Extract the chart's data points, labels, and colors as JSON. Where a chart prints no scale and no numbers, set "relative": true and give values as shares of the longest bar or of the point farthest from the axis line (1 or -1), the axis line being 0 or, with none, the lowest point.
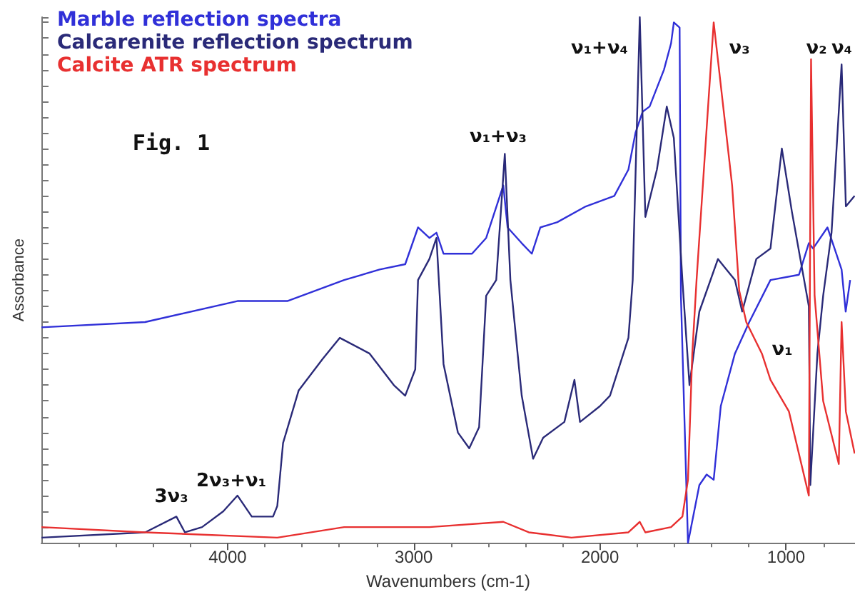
{
  "chart_data": {
    "type": "line",
    "relative": true,
    "xlabel": "Wavenumbers (cm-1)",
    "ylabel": "Assorbance",
    "xlim": [
      5000,
      630
    ],
    "xticks": [
      4000,
      3000,
      2000,
      1000
    ],
    "legend": "top left",
    "marker": "none",
    "line_style": "solid",
    "series": [
      {
        "name": "Marble reflection spectra",
        "color": "#3030d8",
        "x": [
          5000,
          4443,
          3947,
          3679,
          3374,
          3183,
          3046,
          2977,
          2916,
          2878,
          2840,
          2687,
          2611,
          2519,
          2496,
          2420,
          2366,
          2320,
          2229,
          2076,
          1923,
          1847,
          1809,
          1771,
          1733,
          1656,
          1618,
          1603,
          1572,
          1565,
          1527,
          1466,
          1427,
          1389,
          1351,
          1275,
          1198,
          1084,
          931,
          878,
          855,
          778,
          702,
          680,
          656
        ],
        "values": [
          0.41,
          0.42,
          0.46,
          0.46,
          0.5,
          0.52,
          0.53,
          0.6,
          0.58,
          0.59,
          0.55,
          0.55,
          0.58,
          0.68,
          0.6,
          0.57,
          0.55,
          0.6,
          0.61,
          0.64,
          0.66,
          0.71,
          0.78,
          0.82,
          0.83,
          0.9,
          0.95,
          0.99,
          0.98,
          0.47,
          0,
          0.11,
          0.13,
          0.12,
          0.26,
          0.36,
          0.42,
          0.5,
          0.51,
          0.57,
          0.56,
          0.6,
          0.52,
          0.44,
          0.5
        ]
      },
      {
        "name": "Calcarenite reflection spectrum",
        "color": "#2a2a78",
        "x": [
          5000,
          4443,
          4275,
          4229,
          4137,
          4023,
          3947,
          3870,
          3756,
          3733,
          3702,
          3618,
          3489,
          3397,
          3237,
          3107,
          3046,
          2992,
          2977,
          2916,
          2878,
          2840,
          2763,
          2702,
          2649,
          2611,
          2557,
          2511,
          2481,
          2420,
          2359,
          2305,
          2191,
          2137,
          2107,
          2000,
          1946,
          1847,
          1824,
          1786,
          1756,
          1694,
          1641,
          1603,
          1557,
          1519,
          1466,
          1366,
          1275,
          1236,
          1160,
          1084,
          1023,
          969,
          878,
          870,
          832,
          801,
          756,
          702,
          679,
          632
        ],
        "values": [
          0.01,
          0.02,
          0.05,
          0.02,
          0.03,
          0.06,
          0.09,
          0.05,
          0.05,
          0.07,
          0.19,
          0.29,
          0.35,
          0.39,
          0.36,
          0.3,
          0.28,
          0.33,
          0.5,
          0.54,
          0.58,
          0.34,
          0.21,
          0.18,
          0.22,
          0.47,
          0.5,
          0.74,
          0.5,
          0.28,
          0.16,
          0.2,
          0.23,
          0.31,
          0.23,
          0.26,
          0.28,
          0.39,
          0.5,
          1,
          0.62,
          0.71,
          0.83,
          0.77,
          0.5,
          0.3,
          0.44,
          0.54,
          0.5,
          0.44,
          0.54,
          0.56,
          0.75,
          0.63,
          0.45,
          0.11,
          0.36,
          0.47,
          0.59,
          0.91,
          0.64,
          0.66
        ]
      },
      {
        "name": "Calcite ATR spectrum",
        "color": "#e83030",
        "x": [
          5000,
          4443,
          3733,
          3374,
          2916,
          2519,
          2382,
          2153,
          1847,
          1786,
          1756,
          1618,
          1557,
          1527,
          1504,
          1481,
          1389,
          1290,
          1252,
          1214,
          1130,
          1084,
          985,
          878,
          866,
          847,
          801,
          717,
          702,
          679,
          632
        ],
        "values": [
          0.03,
          0.02,
          0.01,
          0.03,
          0.03,
          0.04,
          0.02,
          0.01,
          0.02,
          0.04,
          0.02,
          0.03,
          0.05,
          0.12,
          0.36,
          0.5,
          0.99,
          0.68,
          0.48,
          0.42,
          0.36,
          0.31,
          0.25,
          0.09,
          0.92,
          0.47,
          0.27,
          0.15,
          0.42,
          0.25,
          0.17
        ]
      }
    ],
    "annotations": [
      "Fig. 1",
      "ν₁+ν₃",
      "ν₁+ν₄",
      "ν₃",
      "ν₂",
      "ν₄",
      "ν₁",
      "3ν₃",
      "2ν₃+ν₁"
    ]
  }
}
